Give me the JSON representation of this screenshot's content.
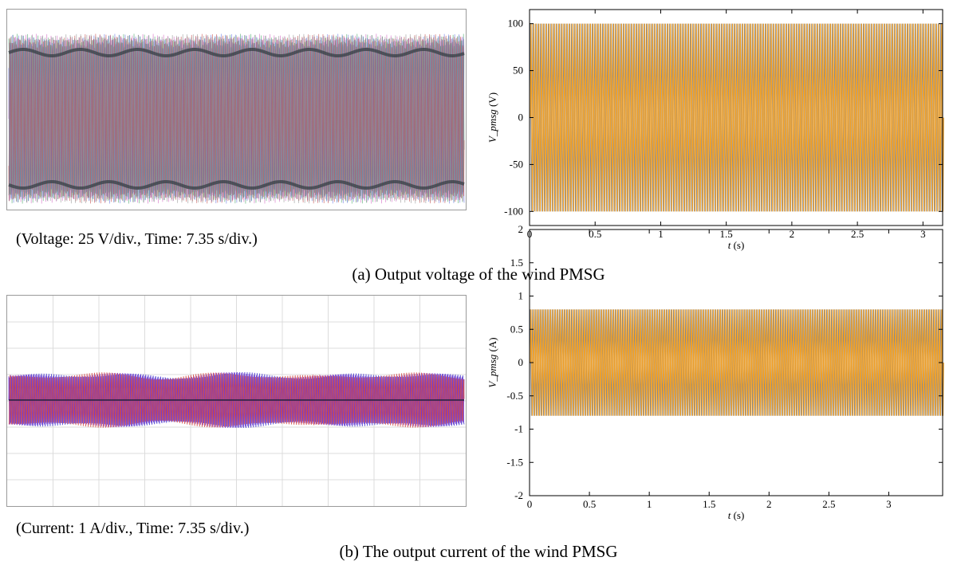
{
  "panels": {
    "a": {
      "caption": "(a) Output voltage of the wind PMSG",
      "scope_caption": "(Voltage: 25 V/div., Time: 7.35 s/div.)"
    },
    "b": {
      "caption": "(b) The output current of the wind PMSG",
      "scope_caption": "(Current: 1 A/div., Time: 7.35 s/div.)"
    }
  },
  "colors": {
    "sim_trace_primary": "#f0a028",
    "sim_trace_secondary": "#8a8a8a",
    "scope_trace_a": [
      "#d060c0",
      "#40a060",
      "#6070e0",
      "#c04040",
      "#909090"
    ],
    "scope_trace_b": [
      "#4030d0",
      "#7a30c8",
      "#d04040"
    ],
    "scope_grid": "#dcdcdc",
    "axis": "#000000"
  },
  "chart_data": [
    {
      "id": "voltage-sim",
      "type": "line",
      "xlabel_var": "t",
      "xlabel_unit": "(s)",
      "ylabel_var": "V_pmsg",
      "ylabel_unit": "(V)",
      "xlim": [
        0,
        3.15
      ],
      "ylim": [
        -115,
        115
      ],
      "x_ticks": [
        0,
        0.5,
        1,
        1.5,
        2,
        2.5,
        3
      ],
      "x_tick_labels": [
        "0",
        "0.5",
        "1",
        "1.5",
        "2",
        "2.5",
        "3"
      ],
      "y_ticks": [
        100,
        50,
        0,
        -50,
        -100
      ],
      "y_tick_labels": [
        "100",
        "50",
        "0",
        "-50",
        "-100"
      ],
      "series": [
        {
          "kind": "sinusoid",
          "amplitude": 100,
          "cycles": 160,
          "x": [
            0,
            3.15
          ],
          "color_key": "sim_trace_primary"
        }
      ]
    },
    {
      "id": "current-sim",
      "type": "line",
      "xlabel_var": "t",
      "xlabel_unit": "(s)",
      "ylabel_var": "V_pmsg",
      "ylabel_unit": "(A)",
      "xlim": [
        0,
        3.45
      ],
      "ylim": [
        -2,
        2
      ],
      "x_ticks": [
        0,
        0.5,
        1,
        1.5,
        2,
        2.5,
        3
      ],
      "x_tick_labels": [
        "0",
        "0.5",
        "1",
        "1.5",
        "2",
        "2.5",
        "3"
      ],
      "y_ticks": [
        2,
        1.5,
        1,
        0.5,
        0,
        -0.5,
        -1,
        -1.5,
        -2
      ],
      "y_tick_labels": [
        "2",
        "1.5",
        "1",
        "0.5",
        "0",
        "-0.5",
        "-1",
        "-1.5",
        "-2"
      ],
      "series": [
        {
          "kind": "sinusoid",
          "amplitude": 0.8,
          "cycles": 170,
          "x": [
            0,
            3.45
          ],
          "color_key": "sim_trace_primary"
        }
      ]
    },
    {
      "id": "voltage-scope",
      "type": "line",
      "volts_per_div": 25,
      "time_per_div_s": 7.35,
      "divisions_x": 10,
      "divisions_y": 8,
      "envelope_divisions": 3.6,
      "grid": false
    },
    {
      "id": "current-scope",
      "type": "line",
      "amps_per_div": 1,
      "time_per_div_s": 7.35,
      "divisions_x": 10,
      "divisions_y": 8,
      "envelope_divisions": 0.85,
      "grid": true
    }
  ]
}
